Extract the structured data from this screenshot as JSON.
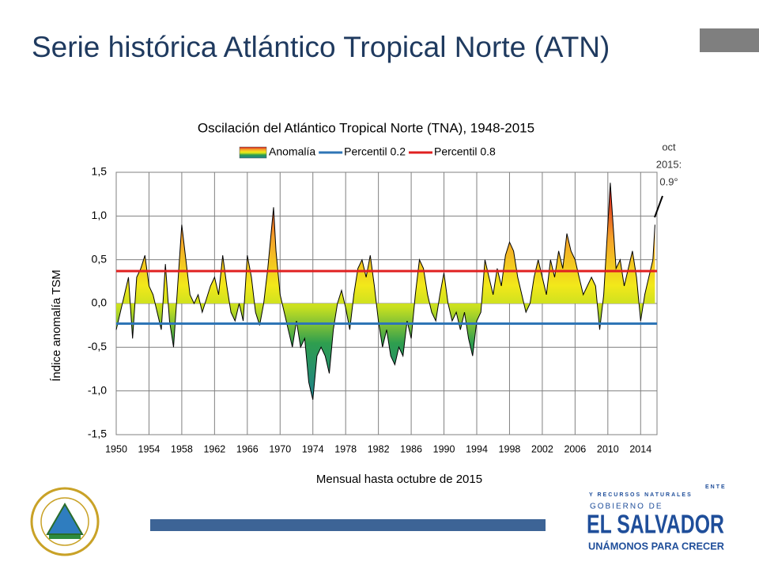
{
  "slide": {
    "title": "Serie histórica Atlántico Tropical Norte (ATN)",
    "logo": {
      "line1": "Y RECURSOS NATURALES",
      "line0": "ENTE",
      "line2": "GOBIERNO DE",
      "line3": "EL SALVADOR",
      "line4": "UNÁMONOS PARA CRECER"
    }
  },
  "chart_data": {
    "type": "area",
    "title": "Oscilación del Atlántico Tropical Norte (TNA), 1948-2015",
    "xlabel": "Mensual hasta octubre de 2015",
    "ylabel": "Índice anomalía TSM",
    "annotation": {
      "lines": [
        "oct",
        "2015:",
        "0.9°"
      ]
    },
    "legend": "top",
    "grid": true,
    "xlim": [
      1950,
      2016
    ],
    "xticks": [
      1950,
      1954,
      1958,
      1962,
      1966,
      1970,
      1974,
      1978,
      1982,
      1986,
      1990,
      1994,
      1998,
      2002,
      2006,
      2010,
      2014
    ],
    "ylim": [
      -1.5,
      1.5
    ],
    "yticks": [
      {
        "value": -1.5,
        "label": "-1,5"
      },
      {
        "value": -1.0,
        "label": "-1,0"
      },
      {
        "value": -0.5,
        "label": "-0,5"
      },
      {
        "value": 0,
        "label": "0,0"
      },
      {
        "value": 0.5,
        "label": "0,5"
      },
      {
        "value": 1.0,
        "label": "1,0"
      },
      {
        "value": 1.5,
        "label": "1,5"
      }
    ],
    "series": [
      {
        "name": "Anomalía",
        "color": "#000000",
        "colors": [
          "#d7191c",
          "#f4a02a",
          "#f2e81a",
          "#c8e020",
          "#2e9e4f",
          "#1e7f8f"
        ],
        "x": [
          1950,
          1950.5,
          1951,
          1951.5,
          1952,
          1952.5,
          1953,
          1953.5,
          1954,
          1954.5,
          1955,
          1955.5,
          1956,
          1956.5,
          1957,
          1957.5,
          1958,
          1958.5,
          1959,
          1959.5,
          1960,
          1960.5,
          1961,
          1961.5,
          1962,
          1962.5,
          1963,
          1963.5,
          1964,
          1964.5,
          1965,
          1965.5,
          1966,
          1966.5,
          1967,
          1967.5,
          1968,
          1968.5,
          1969.2,
          1969.5,
          1970,
          1970.5,
          1971,
          1971.5,
          1972,
          1972.5,
          1973,
          1973.5,
          1974,
          1974.5,
          1975,
          1975.5,
          1976,
          1976.5,
          1977,
          1977.5,
          1978,
          1978.5,
          1979,
          1979.5,
          1980,
          1980.5,
          1981,
          1981.5,
          1982,
          1982.5,
          1983,
          1983.5,
          1984,
          1984.5,
          1985,
          1985.5,
          1986,
          1986.5,
          1987,
          1987.5,
          1988,
          1988.5,
          1989,
          1989.5,
          1990,
          1990.5,
          1991,
          1991.5,
          1992,
          1992.5,
          1993,
          1993.5,
          1994,
          1994.5,
          1995,
          1995.5,
          1996,
          1996.5,
          1997,
          1997.5,
          1998,
          1998.5,
          1999,
          1999.5,
          2000,
          2000.5,
          2001,
          2001.5,
          2002,
          2002.5,
          2003,
          2003.5,
          2004,
          2004.5,
          2005,
          2005.5,
          2006,
          2006.5,
          2007,
          2007.5,
          2008,
          2008.5,
          2009,
          2009.5,
          2010,
          2010.3,
          2010.5,
          2011,
          2011.5,
          2012,
          2012.5,
          2013,
          2013.5,
          2014,
          2014.5,
          2015,
          2015.5,
          2015.75
        ],
        "values": [
          -0.3,
          -0.1,
          0.1,
          0.3,
          -0.4,
          0.3,
          0.4,
          0.55,
          0.2,
          0.1,
          -0.1,
          -0.3,
          0.45,
          -0.2,
          -0.5,
          0.2,
          0.9,
          0.5,
          0.1,
          0.0,
          0.1,
          -0.1,
          0.05,
          0.2,
          0.3,
          0.1,
          0.55,
          0.2,
          -0.1,
          -0.2,
          0.0,
          -0.2,
          0.55,
          0.3,
          -0.1,
          -0.25,
          0.0,
          0.4,
          1.1,
          0.6,
          0.1,
          -0.1,
          -0.3,
          -0.5,
          -0.2,
          -0.5,
          -0.4,
          -0.9,
          -1.1,
          -0.6,
          -0.5,
          -0.6,
          -0.8,
          -0.3,
          0.0,
          0.15,
          -0.05,
          -0.3,
          0.1,
          0.4,
          0.5,
          0.3,
          0.55,
          0.2,
          -0.2,
          -0.5,
          -0.3,
          -0.6,
          -0.7,
          -0.5,
          -0.6,
          -0.2,
          -0.4,
          0.1,
          0.5,
          0.4,
          0.1,
          -0.1,
          -0.2,
          0.1,
          0.35,
          0.0,
          -0.2,
          -0.1,
          -0.3,
          -0.1,
          -0.4,
          -0.6,
          -0.2,
          -0.1,
          0.5,
          0.3,
          0.1,
          0.4,
          0.2,
          0.55,
          0.7,
          0.6,
          0.3,
          0.1,
          -0.1,
          0.0,
          0.3,
          0.5,
          0.3,
          0.1,
          0.5,
          0.3,
          0.6,
          0.4,
          0.8,
          0.6,
          0.5,
          0.3,
          0.1,
          0.2,
          0.3,
          0.2,
          -0.3,
          0.1,
          0.9,
          1.38,
          1.1,
          0.4,
          0.5,
          0.2,
          0.4,
          0.6,
          0.3,
          -0.2,
          0.1,
          0.3,
          0.5,
          0.9
        ]
      },
      {
        "name": "Percentil 0.2",
        "color": "#2e75b6",
        "value": -0.23
      },
      {
        "name": "Percentil 0.8",
        "color": "#e02020",
        "value": 0.37
      }
    ]
  }
}
